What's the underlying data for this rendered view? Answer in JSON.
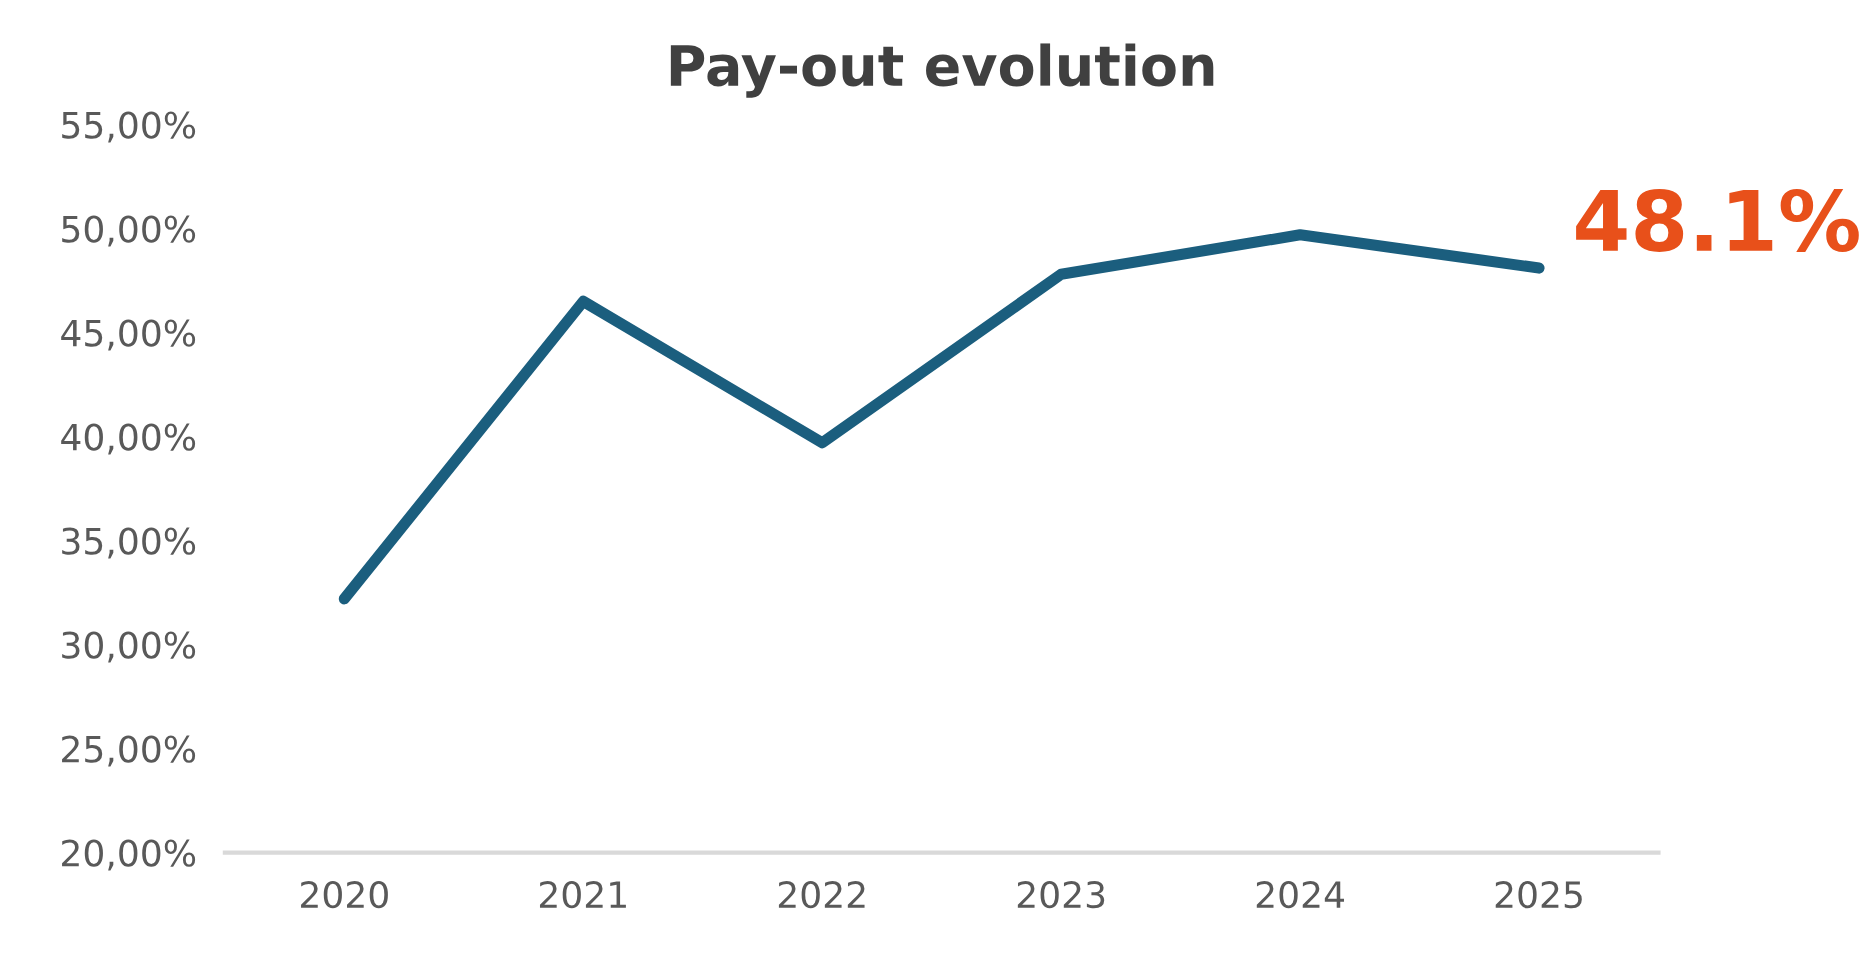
{
  "chart_data": {
    "type": "line",
    "title": "Pay-out evolution",
    "categories": [
      "2020",
      "2021",
      "2022",
      "2023",
      "2024",
      "2025"
    ],
    "series": [
      {
        "color": "#1b5e7e",
        "values": [
          32.2,
          46.5,
          39.7,
          47.8,
          49.7,
          48.1
        ]
      }
    ],
    "ylim": [
      20,
      55
    ],
    "yticks": [
      {
        "value": 20,
        "label": "20,00%"
      },
      {
        "value": 25,
        "label": "25,00%"
      },
      {
        "value": 30,
        "label": "30,00%"
      },
      {
        "value": 35,
        "label": "35,00%"
      },
      {
        "value": 40,
        "label": "40,00%"
      },
      {
        "value": 45,
        "label": "45,00%"
      },
      {
        "value": 50,
        "label": "50,00%"
      },
      {
        "value": 55,
        "label": "55,00%"
      }
    ],
    "grid": false,
    "legend": false,
    "marker": "none",
    "line_style": "solid",
    "annotations": [
      {
        "text": "48.1%",
        "x": "2025",
        "y": 48.1
      }
    ]
  }
}
